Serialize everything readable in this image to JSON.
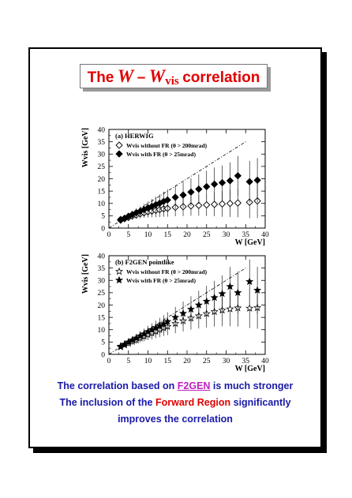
{
  "title": {
    "prefix": "The",
    "var1": "W",
    "dash": "–",
    "var2": "W",
    "var2_sub": "vis",
    "suffix": "correlation"
  },
  "colors": {
    "title_red": "#e00000",
    "caption_blue": "#1a1aa8",
    "link_magenta": "#c020c0"
  },
  "caption": {
    "line1_a": "The correlation based on ",
    "line1_link": "F2GEN",
    "line1_b": " is much stronger",
    "line2_a": "The inclusion of the ",
    "line2_red": "Forward Region",
    "line2_b": " significantly",
    "line3": "improves the correlation"
  },
  "chart_data": [
    {
      "type": "scatter",
      "panel_label": "(a)  HERWIG",
      "xlabel": "W  [GeV]",
      "ylabel": "W_vis [GeV]",
      "xlim": [
        0,
        40
      ],
      "ylim": [
        0,
        40
      ],
      "xticks": [
        0,
        5,
        10,
        15,
        20,
        25,
        30,
        35,
        40
      ],
      "yticks": [
        0,
        5,
        10,
        15,
        20,
        25,
        30,
        35,
        40
      ],
      "diagonal": [
        [
          0,
          0
        ],
        [
          35,
          35
        ]
      ],
      "series": [
        {
          "name": "W_vis without FR (θ > 200mrad)",
          "marker": "open-diamond",
          "points": [
            [
              3,
              3.2,
              0.8
            ],
            [
              4,
              3.8,
              1
            ],
            [
              5,
              4.3,
              1.1
            ],
            [
              6,
              4.9,
              1.3
            ],
            [
              7,
              5.3,
              1.5
            ],
            [
              8,
              5.8,
              1.8
            ],
            [
              9,
              6.2,
              2
            ],
            [
              10,
              6.6,
              2.3
            ],
            [
              11,
              6.9,
              2.5
            ],
            [
              12,
              7.2,
              2.8
            ],
            [
              13,
              7.5,
              3
            ],
            [
              14,
              7.8,
              3.2
            ],
            [
              15,
              8,
              3.4
            ],
            [
              17,
              8.4,
              3.6
            ],
            [
              19,
              8.7,
              3.8
            ],
            [
              21,
              9,
              4
            ],
            [
              23,
              9.2,
              4.2
            ],
            [
              25,
              9.4,
              4.5
            ],
            [
              27,
              9.6,
              4.8
            ],
            [
              29,
              9.8,
              5.2
            ],
            [
              31,
              10,
              5.5
            ],
            [
              33,
              10.2,
              5.8
            ],
            [
              36,
              10.5,
              6.5
            ],
            [
              38,
              11,
              7
            ]
          ]
        },
        {
          "name": "W_vis with FR (θ > 25mrad)",
          "marker": "filled-diamond",
          "points": [
            [
              3,
              3.5,
              0.8
            ],
            [
              4,
              4,
              1
            ],
            [
              5,
              4.8,
              1.2
            ],
            [
              6,
              5.5,
              1.5
            ],
            [
              7,
              6.2,
              1.8
            ],
            [
              8,
              6.8,
              2
            ],
            [
              9,
              7.5,
              2.3
            ],
            [
              10,
              8.2,
              2.6
            ],
            [
              11,
              8.8,
              3
            ],
            [
              12,
              9.5,
              3.2
            ],
            [
              13,
              10.1,
              3.6
            ],
            [
              14,
              10.8,
              4
            ],
            [
              15,
              11.4,
              4.3
            ],
            [
              17,
              12.5,
              4.8
            ],
            [
              19,
              13.4,
              5.2
            ],
            [
              21,
              14.6,
              5.6
            ],
            [
              23,
              15.8,
              6
            ],
            [
              25,
              16.8,
              6.4
            ],
            [
              27,
              17.8,
              6.8
            ],
            [
              29,
              18.4,
              7
            ],
            [
              31,
              19.2,
              7.5
            ],
            [
              33,
              21.2,
              8
            ],
            [
              36,
              18.8,
              8.5
            ],
            [
              38,
              19.4,
              9
            ]
          ]
        }
      ]
    },
    {
      "type": "scatter",
      "panel_label": "(b)  F2GEN pointlike",
      "xlabel": "W  [GeV]",
      "ylabel": "W_vis [GeV]",
      "xlim": [
        0,
        40
      ],
      "ylim": [
        0,
        40
      ],
      "xticks": [
        0,
        5,
        10,
        15,
        20,
        25,
        30,
        35,
        40
      ],
      "yticks": [
        0,
        5,
        10,
        15,
        20,
        25,
        30,
        35,
        40
      ],
      "diagonal": [
        [
          0,
          0
        ],
        [
          35,
          35
        ]
      ],
      "series": [
        {
          "name": "W_vis without FR (θ > 200mrad)",
          "marker": "open-star",
          "points": [
            [
              3,
              3,
              0.7
            ],
            [
              4,
              3.8,
              0.9
            ],
            [
              5,
              4.5,
              1.1
            ],
            [
              6,
              5.2,
              1.3
            ],
            [
              7,
              5.8,
              1.5
            ],
            [
              8,
              6.6,
              1.7
            ],
            [
              9,
              7.3,
              2
            ],
            [
              10,
              8,
              2.2
            ],
            [
              11,
              8.6,
              2.5
            ],
            [
              12,
              9.3,
              2.7
            ],
            [
              13,
              10,
              3
            ],
            [
              14,
              10.7,
              3.2
            ],
            [
              15,
              11.3,
              3.5
            ],
            [
              17,
              12.5,
              3.9
            ],
            [
              19,
              13.6,
              4.3
            ],
            [
              21,
              14.7,
              4.7
            ],
            [
              23,
              15.6,
              5.1
            ],
            [
              25,
              16.5,
              5.6
            ],
            [
              27,
              17.3,
              6
            ],
            [
              29,
              17.9,
              6.5
            ],
            [
              31,
              18.4,
              7
            ],
            [
              33,
              18.8,
              7.5
            ],
            [
              36,
              18.7,
              8
            ],
            [
              38,
              18.9,
              8.5
            ]
          ]
        },
        {
          "name": "W_vis with FR (θ > 25mrad)",
          "marker": "filled-star",
          "points": [
            [
              3,
              3.3,
              0.8
            ],
            [
              4,
              4.1,
              1
            ],
            [
              5,
              5,
              1.2
            ],
            [
              6,
              5.8,
              1.4
            ],
            [
              7,
              6.6,
              1.6
            ],
            [
              8,
              7.5,
              1.9
            ],
            [
              9,
              8.3,
              2.1
            ],
            [
              10,
              9.2,
              2.4
            ],
            [
              11,
              10,
              2.6
            ],
            [
              12,
              10.8,
              2.9
            ],
            [
              13,
              11.6,
              3.2
            ],
            [
              14,
              12.4,
              3.5
            ],
            [
              15,
              13.3,
              3.8
            ],
            [
              17,
              15,
              4.3
            ],
            [
              19,
              16.6,
              4.8
            ],
            [
              21,
              18.3,
              5.3
            ],
            [
              23,
              20,
              5.8
            ],
            [
              25,
              21.5,
              6.3
            ],
            [
              27,
              23,
              6.8
            ],
            [
              29,
              24.6,
              7.4
            ],
            [
              31,
              27.5,
              8
            ],
            [
              33,
              25,
              8.6
            ],
            [
              36,
              29.5,
              9
            ],
            [
              38,
              26,
              9.5
            ]
          ]
        }
      ]
    }
  ]
}
